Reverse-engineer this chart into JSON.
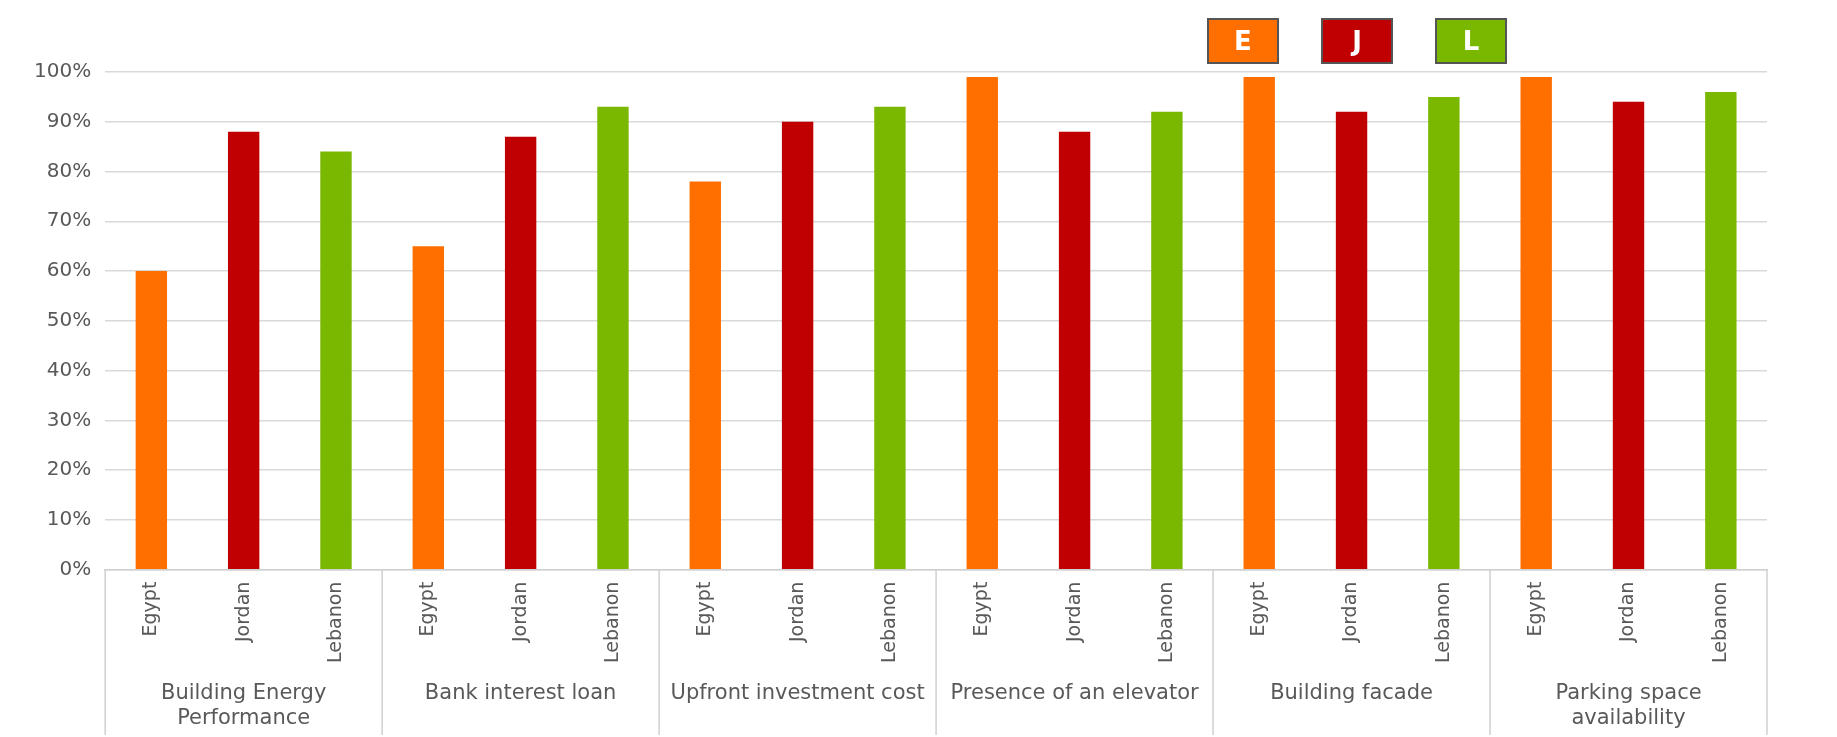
{
  "chart_data": {
    "type": "bar",
    "categories": [
      "Egypt",
      "Jordan",
      "Lebanon",
      "Egypt",
      "Jordan",
      "Lebanon",
      "Egypt",
      "Jordan",
      "Lebanon",
      "Egypt",
      "Jordan",
      "Lebanon",
      "Egypt",
      "Jordan",
      "Lebanon",
      "Egypt",
      "Jordan",
      "Lebanon"
    ],
    "series": [
      {
        "name": "E",
        "color": "#ff6f00",
        "values": [
          60,
          null,
          null,
          65,
          null,
          null,
          78,
          null,
          null,
          99,
          null,
          null,
          99,
          null,
          null,
          99,
          null,
          null
        ]
      },
      {
        "name": "J",
        "color": "#c00000",
        "values": [
          null,
          88,
          null,
          null,
          87,
          null,
          null,
          90,
          null,
          null,
          88,
          null,
          null,
          92,
          null,
          null,
          94,
          null
        ]
      },
      {
        "name": "L",
        "color": "#7ab800",
        "values": [
          null,
          null,
          84,
          null,
          null,
          93,
          null,
          null,
          93,
          null,
          null,
          92,
          null,
          null,
          95,
          null,
          null,
          96
        ]
      }
    ],
    "ylim": [
      0,
      100
    ],
    "yticks": [
      {
        "value": 0,
        "label": "0%"
      },
      {
        "value": 10,
        "label": "10%"
      },
      {
        "value": 20,
        "label": "20%"
      },
      {
        "value": 30,
        "label": "30%"
      },
      {
        "value": 40,
        "label": "40%"
      },
      {
        "value": 50,
        "label": "50%"
      },
      {
        "value": 60,
        "label": "60%"
      },
      {
        "value": 70,
        "label": "70%"
      },
      {
        "value": 80,
        "label": "80%"
      },
      {
        "value": 90,
        "label": "90%"
      },
      {
        "value": 100,
        "label": "100%"
      }
    ],
    "annotations": [
      "Building Energy Performance",
      "Bank interest loan",
      "Upfront investment cost",
      "Presence of an elevator",
      "Building facade",
      "Parking space availability"
    ],
    "grid": "y",
    "legend": "top right"
  }
}
